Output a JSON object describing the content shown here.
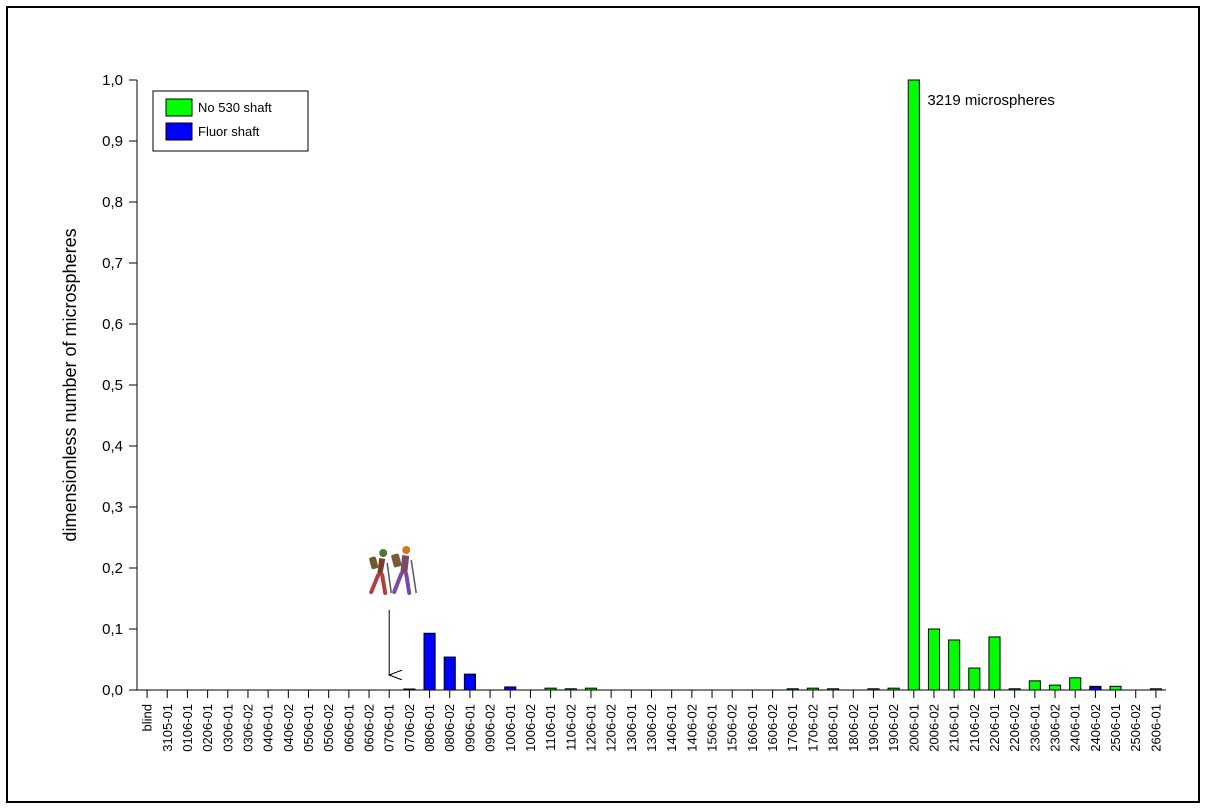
{
  "chart_data": {
    "type": "bar",
    "title": "",
    "xlabel": "",
    "ylabel": "dimensionless number of microspheres",
    "ylim": [
      0,
      1.0
    ],
    "yticks": [
      "0,0",
      "0,1",
      "0,2",
      "0,3",
      "0,4",
      "0,5",
      "0,6",
      "0,7",
      "0,8",
      "0,9",
      "1,0"
    ],
    "grid": false,
    "legend_position": "top-left",
    "categories": [
      "blind",
      "3105-01",
      "0106-01",
      "0206-01",
      "0306-01",
      "0306-02",
      "0406-01",
      "0406-02",
      "0506-01",
      "0506-02",
      "0606-01",
      "0606-02",
      "0706-01",
      "0706-02",
      "0806-01",
      "0806-02",
      "0906-01",
      "0906-02",
      "1006-01",
      "1006-02",
      "1106-01",
      "1106-02",
      "1206-01",
      "1206-02",
      "1306-01",
      "1306-02",
      "1406-01",
      "1406-02",
      "1506-01",
      "1506-02",
      "1606-01",
      "1606-02",
      "1706-01",
      "1706-02",
      "1806-01",
      "1806-02",
      "1906-01",
      "1906-02",
      "2006-01",
      "2006-02",
      "2106-01",
      "2106-02",
      "2206-01",
      "2206-02",
      "2306-01",
      "2306-02",
      "2406-01",
      "2406-02",
      "2506-01",
      "2506-02",
      "2606-01"
    ],
    "series": [
      {
        "name": "No 530 shaft",
        "color": "#00ff00",
        "values": [
          0,
          0,
          0,
          0,
          0,
          0,
          0,
          0,
          0,
          0,
          0,
          0,
          0,
          0,
          0,
          0,
          0,
          0,
          0,
          0,
          0.003,
          0.002,
          0.003,
          0,
          0,
          0,
          0,
          0,
          0,
          0,
          0,
          0,
          0.002,
          0.003,
          0.002,
          0,
          0.002,
          0.003,
          1.0,
          0.1,
          0.082,
          0.036,
          0.087,
          0.002,
          0.015,
          0.008,
          0.02,
          0.006,
          0.006,
          0,
          0.002
        ]
      },
      {
        "name": "Fluor shaft",
        "color": "#0000ff",
        "values": [
          0,
          0,
          0,
          0,
          0,
          0,
          0,
          0,
          0,
          0,
          0,
          0,
          0,
          0.001,
          0.093,
          0.054,
          0.026,
          0,
          0.005,
          0,
          0,
          0,
          0,
          0,
          0,
          0,
          0,
          0,
          0,
          0,
          0,
          0,
          0,
          0,
          0,
          0,
          0,
          0,
          0,
          0,
          0,
          0,
          0,
          0,
          0,
          0,
          0,
          0.005,
          0,
          0,
          0
        ]
      }
    ],
    "annotations": [
      {
        "text": "3219 microspheres",
        "category_index": 38
      }
    ],
    "markers": [
      {
        "type": "arrow-down",
        "category_index": 12,
        "icon": "hikers-icon"
      }
    ]
  }
}
